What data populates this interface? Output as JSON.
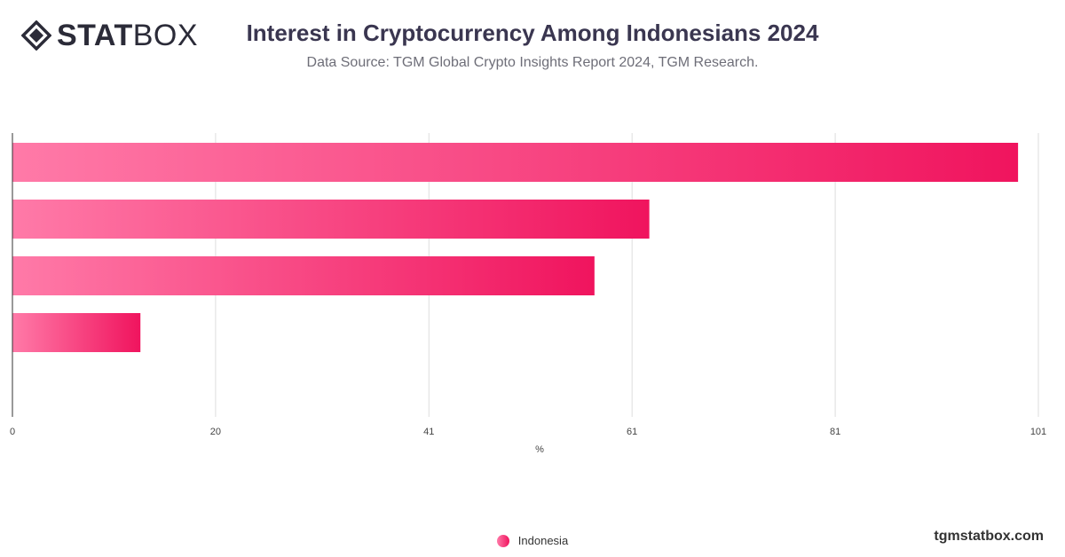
{
  "header": {
    "logo_bold": "STAT",
    "logo_light": "BOX",
    "title": "Interest in Cryptocurrency Among Indonesians 2024",
    "subtitle": "Data Source: TGM Global Crypto Insights Report 2024, TGM Research."
  },
  "chart_data": {
    "type": "bar",
    "orientation": "horizontal",
    "categories": [
      "",
      "",
      "",
      ""
    ],
    "series": [
      {
        "name": "Indonesia",
        "values": [
          99,
          62.7,
          57.3,
          12.6
        ]
      }
    ],
    "xlabel": "%",
    "ylabel": "",
    "xlim": [
      0,
      101
    ],
    "x_ticks": [
      "0",
      "20",
      "41",
      "61",
      "81",
      "101"
    ],
    "grid": true,
    "legend_position": "bottom-center",
    "colors": {
      "bar_start": "#ff7aa8",
      "bar_end": "#f0145e",
      "grid": "#dddddd",
      "axis": "#333333"
    }
  },
  "legend": {
    "label": "Indonesia"
  },
  "footer": {
    "brand": "tgmstatbox.com"
  }
}
